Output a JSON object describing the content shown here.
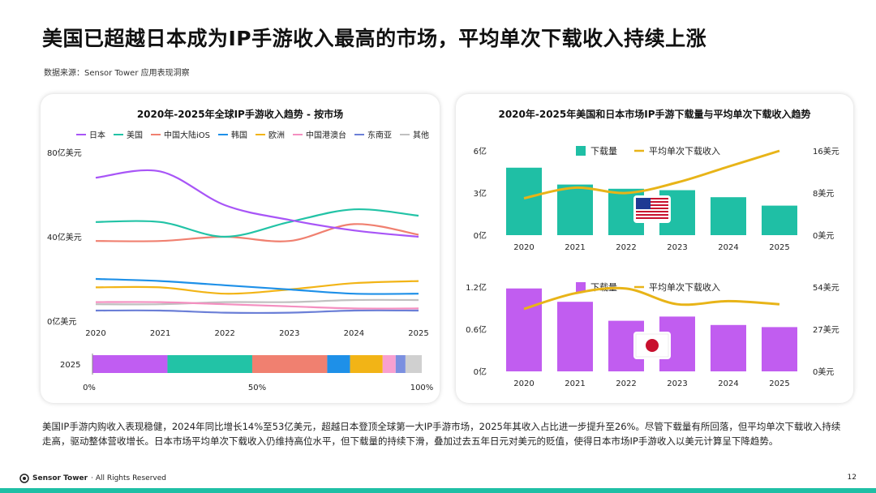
{
  "title": "美国已超越日本成为IP手游收入最高的市场，平均单次下载收入持续上涨",
  "source": "数据来源：Sensor Tower 应用表现洞察",
  "footer": {
    "brand": "Sensor Tower",
    "rights": " · All Rights Reserved",
    "page": "12"
  },
  "description": "美国IP手游内购收入表现稳健，2024年同比增长14%至53亿美元，超越日本登顶全球第一大IP手游市场，2025年其收入占比进一步提升至26%。尽管下载量有所回落，但平均单次下载收入持续走高，驱动整体营收增长。日本市场平均单次下载收入仍维持高位水平，但下载量的持续下滑，叠加过去五年日元对美元的贬值，使得日本市场IP手游收入以美元计算呈下降趋势。",
  "colors": {
    "teal": "#1fbfa5",
    "purple": "#c15df0",
    "gold": "#e8b418",
    "card_shadow": "#cccccc"
  },
  "chart_data": [
    {
      "type": "line",
      "title": "2020年-2025年全球IP手游收入趋势 - 按市场",
      "x": [
        "2020",
        "2021",
        "2022",
        "2023",
        "2024",
        "2025"
      ],
      "ylim": [
        0,
        80
      ],
      "yticks": [
        {
          "v": 0,
          "label": "0亿美元"
        },
        {
          "v": 40,
          "label": "40亿美元"
        },
        {
          "v": 80,
          "label": "80亿美元"
        }
      ],
      "series": [
        {
          "name": "日本",
          "color": "#a855f7",
          "values": [
            68,
            71,
            55,
            48,
            43,
            40
          ]
        },
        {
          "name": "美国",
          "color": "#22c3a6",
          "values": [
            47,
            47,
            40,
            47,
            53,
            50
          ]
        },
        {
          "name": "中国大陆iOS",
          "color": "#f08070",
          "values": [
            38,
            38,
            40,
            38,
            46,
            41
          ]
        },
        {
          "name": "韩国",
          "color": "#1e90e8",
          "values": [
            20,
            19,
            17,
            15,
            13,
            13
          ]
        },
        {
          "name": "欧洲",
          "color": "#f2b416",
          "values": [
            16,
            16,
            13,
            15,
            18,
            19
          ]
        },
        {
          "name": "中国港澳台",
          "color": "#f48fc0",
          "values": [
            9,
            9,
            8,
            7,
            6,
            6
          ]
        },
        {
          "name": "东南亚",
          "color": "#6b7fd7",
          "values": [
            5,
            5,
            4,
            4,
            5,
            5
          ]
        },
        {
          "name": "其他",
          "color": "#c0c0c0",
          "values": [
            8,
            8,
            9,
            9,
            10,
            10
          ]
        }
      ],
      "share_bar": {
        "label": "2025",
        "ticks": [
          "0%",
          "50%",
          "100%"
        ],
        "segments": [
          {
            "name": "日本",
            "color": "#c05df2",
            "value": 23
          },
          {
            "name": "美国",
            "color": "#22c3a6",
            "value": 26
          },
          {
            "name": "中国大陆iOS",
            "color": "#f08070",
            "value": 23
          },
          {
            "name": "韩国",
            "color": "#1e90e8",
            "value": 7
          },
          {
            "name": "欧洲",
            "color": "#f2b416",
            "value": 10
          },
          {
            "name": "中国港澳台",
            "color": "#f8a0d0",
            "value": 4
          },
          {
            "name": "东南亚",
            "color": "#7b8fe0",
            "value": 3
          },
          {
            "name": "其他",
            "color": "#d0d0d0",
            "value": 5
          }
        ]
      }
    },
    {
      "type": "bar",
      "title": "2020年-2025年美国和日本市场IP手游下载量与平均单次下载收入趋势",
      "x": [
        "2020",
        "2021",
        "2022",
        "2023",
        "2024",
        "2025"
      ],
      "panels": [
        {
          "market": "美国",
          "flag": "us",
          "bar_color": "#1fbfa5",
          "line_color": "#e8b418",
          "legend_bar": "下载量",
          "legend_line": "平均单次下载收入",
          "downloads": [
            4.8,
            3.6,
            3.3,
            3.2,
            2.7,
            2.1
          ],
          "arpd": [
            7,
            9,
            8,
            10,
            13,
            16
          ],
          "left_ticks": [
            {
              "v": 0,
              "label": "0亿"
            },
            {
              "v": 3,
              "label": "3亿"
            },
            {
              "v": 6,
              "label": "6亿"
            }
          ],
          "right_ticks": [
            {
              "v": 0,
              "label": "0美元"
            },
            {
              "v": 8,
              "label": "8美元"
            },
            {
              "v": 16,
              "label": "16美元"
            }
          ],
          "left_max": 6,
          "right_max": 16
        },
        {
          "market": "日本",
          "flag": "jp",
          "bar_color": "#c15df0",
          "line_color": "#e8b418",
          "legend_bar": "下载量",
          "legend_line": "平均单次下载收入",
          "downloads": [
            1.18,
            0.99,
            0.72,
            0.78,
            0.66,
            0.63
          ],
          "arpd": [
            40,
            50,
            53,
            43,
            45,
            43
          ],
          "left_ticks": [
            {
              "v": 0,
              "label": "0亿"
            },
            {
              "v": 0.6,
              "label": "0.6亿"
            },
            {
              "v": 1.2,
              "label": "1.2亿"
            }
          ],
          "right_ticks": [
            {
              "v": 0,
              "label": "0美元"
            },
            {
              "v": 27,
              "label": "27美元"
            },
            {
              "v": 54,
              "label": "54美元"
            }
          ],
          "left_max": 1.2,
          "right_max": 54
        }
      ]
    }
  ]
}
